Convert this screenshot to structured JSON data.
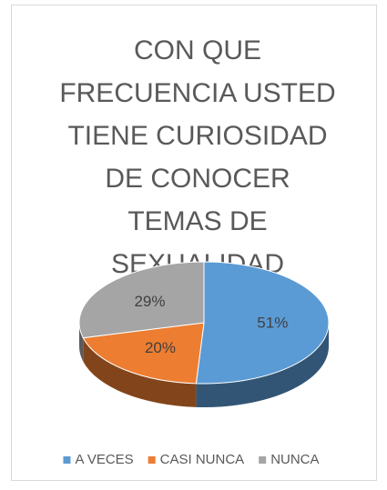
{
  "chart_data": {
    "type": "pie",
    "title": "CON QUE FRECUENCIA USTED TIENE CURIOSIDAD DE CONOCER TEMAS DE SEXUALIDAD",
    "categories": [
      "A VECES",
      "CASI NUNCA",
      "NUNCA"
    ],
    "values": [
      51,
      20,
      29
    ],
    "value_labels": [
      "51%",
      "20%",
      "29%"
    ],
    "colors": [
      "#5b9bd5",
      "#ed7d31",
      "#a5a5a5"
    ],
    "legend": "bottom"
  }
}
